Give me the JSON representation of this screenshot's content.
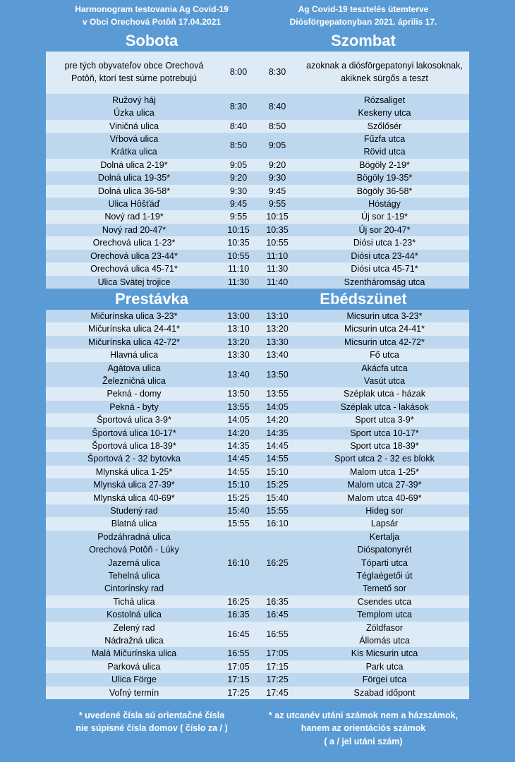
{
  "header": {
    "left": [
      "Harmonogram testovania Ag Covid-19",
      "v Obci Orechová Potôň 17.04.2021"
    ],
    "right": [
      "Ag Covid-19 tesztelés ütemterve",
      "Diósförgepatonyban 2021. április 17."
    ]
  },
  "sections": [
    {
      "heading_left": "Sobota",
      "heading_right": "Szombat",
      "rows": [
        {
          "sk": [
            "pre tých obyvateľov obce Orechová",
            "Potôň, ktorí test súrne potrebujú"
          ],
          "from": "8:00",
          "to": "8:30",
          "hu": [
            "azoknak a diósförgepatonyi lakosoknak,",
            "akiknek sürgős a teszt"
          ]
        },
        {
          "sk": [
            "Ružový háj",
            "Úzka ulica"
          ],
          "from": "8:30",
          "to": "8:40",
          "hu": [
            "Rózsaliget",
            "Keskeny utca"
          ]
        },
        {
          "sk": [
            "Viničná ulica"
          ],
          "from": "8:40",
          "to": "8:50",
          "hu": [
            "Szőlősér"
          ]
        },
        {
          "sk": [
            "Vŕbová ulica",
            "Krátka ulica"
          ],
          "from": "8:50",
          "to": "9:05",
          "hu": [
            "Fűzfa utca",
            "Rövid utca"
          ]
        },
        {
          "sk": [
            "Dolná ulica 2-19*"
          ],
          "from": "9:05",
          "to": "9:20",
          "hu": [
            "Bögöly 2-19*"
          ]
        },
        {
          "sk": [
            "Dolná ulica 19-35*"
          ],
          "from": "9:20",
          "to": "9:30",
          "hu": [
            "Bögöly 19-35*"
          ]
        },
        {
          "sk": [
            "Dolná ulica 36-58*"
          ],
          "from": "9:30",
          "to": "9:45",
          "hu": [
            "Bögöly 36-58*"
          ]
        },
        {
          "sk": [
            "Ulica Hôšťáď"
          ],
          "from": "9:45",
          "to": "9:55",
          "hu": [
            "Hóstágy"
          ]
        },
        {
          "sk": [
            "Nový rad 1-19*"
          ],
          "from": "9:55",
          "to": "10:15",
          "hu": [
            "Új sor 1-19*"
          ]
        },
        {
          "sk": [
            "Nový rad 20-47*"
          ],
          "from": "10:15",
          "to": "10:35",
          "hu": [
            "Új sor 20-47*"
          ]
        },
        {
          "sk": [
            "Orechová ulica 1-23*"
          ],
          "from": "10:35",
          "to": "10:55",
          "hu": [
            "Diósi utca 1-23*"
          ]
        },
        {
          "sk": [
            "Orechová ulica 23-44*"
          ],
          "from": "10:55",
          "to": "11:10",
          "hu": [
            "Diósi utca 23-44*"
          ]
        },
        {
          "sk": [
            "Orechová ulica 45-71*"
          ],
          "from": "11:10",
          "to": "11:30",
          "hu": [
            "Diósi utca 45-71*"
          ]
        },
        {
          "sk": [
            "Ulica Svätej trojice"
          ],
          "from": "11:30",
          "to": "11:40",
          "hu": [
            "Szentháromság utca"
          ]
        }
      ]
    },
    {
      "heading_left": "Prestávka",
      "heading_right": "Ebédszünet",
      "rows": [
        {
          "sk": [
            "Mičurínska ulica 3-23*"
          ],
          "from": "13:00",
          "to": "13:10",
          "hu": [
            "Micsurin utca 3-23*"
          ]
        },
        {
          "sk": [
            "Mičurínska ulica 24-41*"
          ],
          "from": "13:10",
          "to": "13:20",
          "hu": [
            "Micsurin utca 24-41*"
          ]
        },
        {
          "sk": [
            "Mičurínska ulica 42-72*"
          ],
          "from": "13:20",
          "to": "13:30",
          "hu": [
            "Micsurin utca 42-72*"
          ]
        },
        {
          "sk": [
            "Hlavná ulica"
          ],
          "from": "13:30",
          "to": "13:40",
          "hu": [
            "Fő utca"
          ]
        },
        {
          "sk": [
            "Agátova ulica",
            "Železničná ulica"
          ],
          "from": "13:40",
          "to": "13:50",
          "hu": [
            "Akácfa utca",
            "Vasút utca"
          ]
        },
        {
          "sk": [
            "Pekná - domy"
          ],
          "from": "13:50",
          "to": "13:55",
          "hu": [
            "Széplak utca - házak"
          ]
        },
        {
          "sk": [
            "Pekná - byty"
          ],
          "from": "13:55",
          "to": "14:05",
          "hu": [
            "Széplak utca - lakások"
          ]
        },
        {
          "sk": [
            "Športová ulica 3-9*"
          ],
          "from": "14:05",
          "to": "14:20",
          "hu": [
            "Sport utca 3-9*"
          ]
        },
        {
          "sk": [
            "Športová ulica 10-17*"
          ],
          "from": "14:20",
          "to": "14:35",
          "hu": [
            "Sport utca 10-17*"
          ]
        },
        {
          "sk": [
            "Športová ulica 18-39*"
          ],
          "from": "14:35",
          "to": "14:45",
          "hu": [
            "Sport utca 18-39*"
          ]
        },
        {
          "sk": [
            "Športová 2 - 32 bytovka"
          ],
          "from": "14:45",
          "to": "14:55",
          "hu": [
            "Sport utca 2 - 32 es blokk"
          ]
        },
        {
          "sk": [
            "Mlynská ulica 1-25*"
          ],
          "from": "14:55",
          "to": "15:10",
          "hu": [
            "Malom utca 1-25*"
          ]
        },
        {
          "sk": [
            "Mlynská ulica 27-39*"
          ],
          "from": "15:10",
          "to": "15:25",
          "hu": [
            "Malom utca 27-39*"
          ]
        },
        {
          "sk": [
            "Mlynská ulica 40-69*"
          ],
          "from": "15:25",
          "to": "15:40",
          "hu": [
            "Malom utca 40-69*"
          ]
        },
        {
          "sk": [
            "Studený rad"
          ],
          "from": "15:40",
          "to": "15:55",
          "hu": [
            "Hideg sor"
          ]
        },
        {
          "sk": [
            "Blatná ulica"
          ],
          "from": "15:55",
          "to": "16:10",
          "hu": [
            "Lapsár"
          ]
        },
        {
          "sk": [
            "Podzáhradná ulica",
            "Orechová Potôň - Lúky",
            "Jazerná ulica",
            "Tehelná ulica",
            "Cintorínsky rad"
          ],
          "from": "16:10",
          "to": "16:25",
          "hu": [
            "Kertalja",
            "Dióspatonyrét",
            "Tóparti utca",
            "Téglaégetői út",
            "Temető sor"
          ]
        },
        {
          "sk": [
            "Tichá ulica"
          ],
          "from": "16:25",
          "to": "16:35",
          "hu": [
            "Csendes utca"
          ]
        },
        {
          "sk": [
            "Kostolná ulica"
          ],
          "from": "16:35",
          "to": "16:45",
          "hu": [
            "Templom utca"
          ]
        },
        {
          "sk": [
            "Zelený rad",
            "Nádražná ulica"
          ],
          "from": "16:45",
          "to": "16:55",
          "hu": [
            "Zöldfasor",
            "Állomás utca"
          ]
        },
        {
          "sk": [
            "Malá Mičurínska ulica"
          ],
          "from": "16:55",
          "to": "17:05",
          "hu": [
            "Kis Micsurin utca"
          ]
        },
        {
          "sk": [
            "Parková ulica"
          ],
          "from": "17:05",
          "to": "17:15",
          "hu": [
            "Park utca"
          ]
        },
        {
          "sk": [
            "Ulica Förge"
          ],
          "from": "17:15",
          "to": "17:25",
          "hu": [
            "Förgei utca"
          ]
        },
        {
          "sk": [
            "Voľný termín"
          ],
          "from": "17:25",
          "to": "17:45",
          "hu": [
            "Szabad időpont"
          ]
        }
      ]
    }
  ],
  "footer": {
    "left": [
      "* uvedené čísla sú orientačné čísla",
      "nie súpisné čísla domov  ( číslo za / )"
    ],
    "right": [
      "* az utcanév utáni számok nem a házszámok,",
      "hanem az orientációs számok",
      "( a / jel utáni szám)"
    ]
  }
}
